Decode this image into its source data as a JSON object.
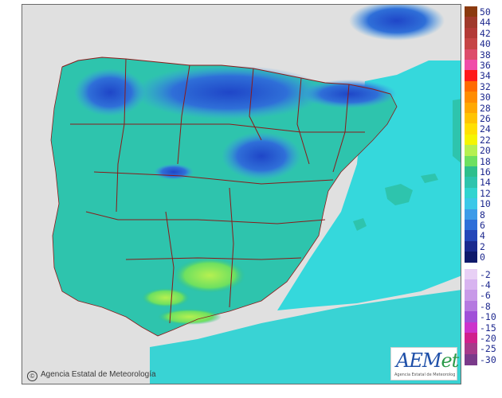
{
  "map": {
    "credit_text": "Agencia Estatal de Meteorología",
    "colors": {
      "land": "#2ec4ad",
      "sea": "#35d8dc",
      "outside": "#e0e0e0",
      "border": "#8a1a1a"
    }
  },
  "logo": {
    "text_main": "AEM",
    "text_accent": "et",
    "subtitle": "Agencia Estatal de Meteorología"
  },
  "legend": {
    "positive": [
      {
        "label": "50",
        "color": "#8b3a0f"
      },
      {
        "label": "44",
        "color": "#a0392b"
      },
      {
        "label": "42",
        "color": "#b33a36"
      },
      {
        "label": "40",
        "color": "#c64545"
      },
      {
        "label": "38",
        "color": "#dd4d6b"
      },
      {
        "label": "36",
        "color": "#f04ca8"
      },
      {
        "label": "34",
        "color": "#ff1a1a"
      },
      {
        "label": "32",
        "color": "#ff6a00"
      },
      {
        "label": "30",
        "color": "#ff8c00"
      },
      {
        "label": "28",
        "color": "#ffa800"
      },
      {
        "label": "26",
        "color": "#ffc400"
      },
      {
        "label": "24",
        "color": "#ffe000"
      },
      {
        "label": "22",
        "color": "#f5f500"
      },
      {
        "label": "20",
        "color": "#b6f050"
      },
      {
        "label": "18",
        "color": "#6ee060"
      },
      {
        "label": "16",
        "color": "#2fbf8c"
      },
      {
        "label": "14",
        "color": "#2ec4ad"
      },
      {
        "label": "12",
        "color": "#31d4d0"
      },
      {
        "label": "10",
        "color": "#3cc8e8"
      },
      {
        "label": "8",
        "color": "#3d9be8"
      },
      {
        "label": "6",
        "color": "#2f6fd8"
      },
      {
        "label": "4",
        "color": "#2446b8"
      },
      {
        "label": "2",
        "color": "#1a2a8e"
      },
      {
        "label": "0",
        "color": "#0f1a6a"
      }
    ],
    "negative": [
      {
        "label": "-2",
        "color": "#e8d0f5"
      },
      {
        "label": "-4",
        "color": "#d8b4f0"
      },
      {
        "label": "-6",
        "color": "#c89ae8"
      },
      {
        "label": "-8",
        "color": "#b57ae0"
      },
      {
        "label": "-10",
        "color": "#a050d8"
      },
      {
        "label": "-15",
        "color": "#cc33cc"
      },
      {
        "label": "-20",
        "color": "#d0208c"
      },
      {
        "label": "-25",
        "color": "#a63a8a"
      },
      {
        "label": "-30",
        "color": "#7a3a8a"
      }
    ]
  }
}
